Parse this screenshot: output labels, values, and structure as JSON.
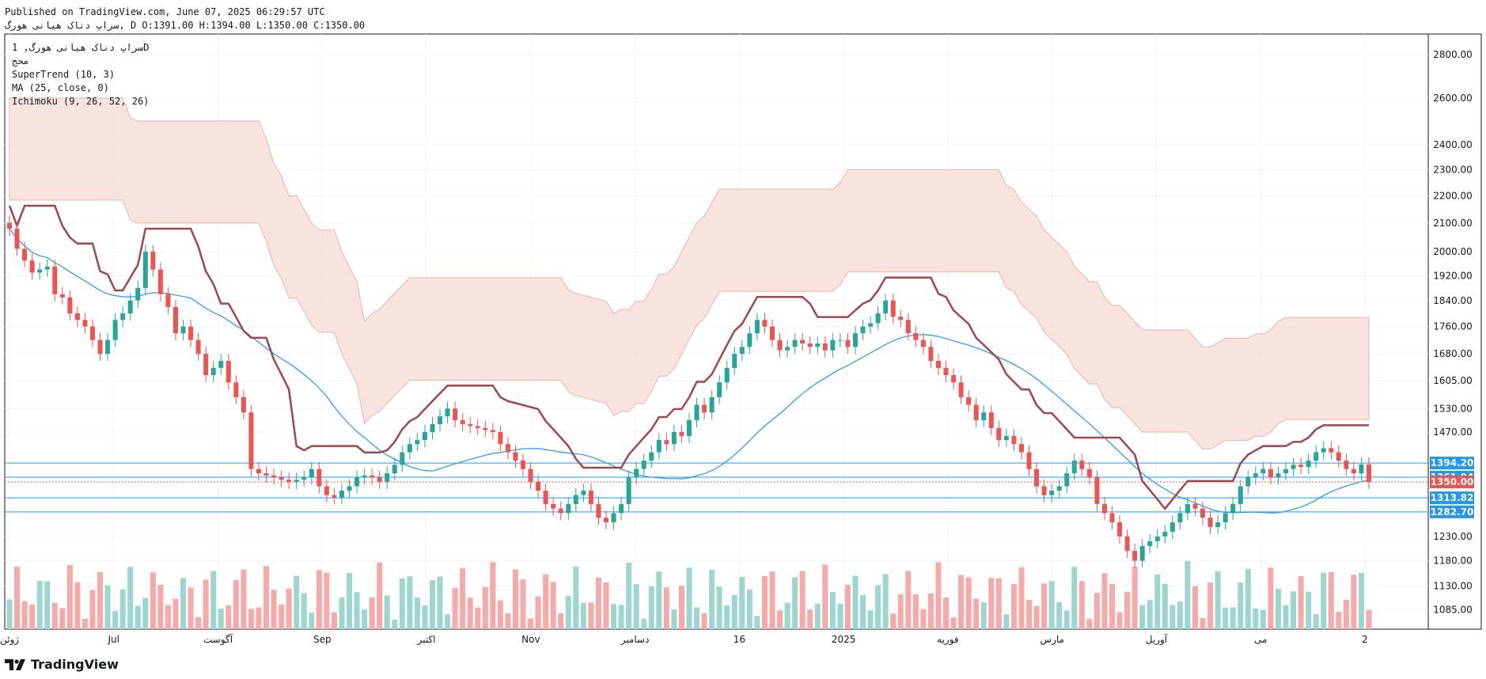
{
  "header": {
    "published": "Published on TradingView.com, June 07, 2025 06:29:57 UTC",
    "symbol_line": "سراپ دناک هیانی هورگ, D O:1391.00 H:1394.00 L:1350.00 C:1350.00"
  },
  "legend": {
    "title": "سراپ دناک هیانی هورگ, 1D",
    "subtitle": "محج",
    "indicators": [
      "SuperTrend (10, 3)",
      "MA (25, close, 0)",
      "Ichimoku (9, 26, 52, 26)"
    ]
  },
  "brand": {
    "name": "TradingView",
    "logo_icon": "tradingview-logo-icon"
  },
  "colors": {
    "up": "#26a69a",
    "down": "#ef5350",
    "supertrend_up": "#43a047",
    "supertrend_down": "#a04848",
    "ma": "#2196f3",
    "cloud_bear": "#f7d9d4",
    "cloud_bull": "#dcefdc",
    "hline": "#2196f3"
  },
  "chart_data": {
    "type": "candlestick",
    "y_scale": "log",
    "ylim": [
      1050,
      2900
    ],
    "x_ticks": [
      "ژوئن",
      "Jul",
      "آگوست",
      "Sep",
      "اکتبر",
      "Nov",
      "دسامبر",
      "16",
      "2025",
      "فوریه",
      "مارس",
      "آوریل",
      "می",
      "2"
    ],
    "y_ticks": [
      2800,
      2600,
      2400,
      2300,
      2200,
      2100,
      2000,
      1920,
      1840,
      1760,
      1680,
      1605,
      1530,
      1470,
      1230,
      1180,
      1130,
      1085
    ],
    "price_labels": [
      {
        "value": "1394.20",
        "price": 1394.2,
        "color": "#2196f3"
      },
      {
        "value": "1361.04",
        "price": 1361.04,
        "color": "#2196f3"
      },
      {
        "value": "1350.00",
        "price": 1350.0,
        "color": "#ef5350"
      },
      {
        "value": "1313.82",
        "price": 1313.82,
        "color": "#2196f3"
      },
      {
        "value": "1282.70",
        "price": 1282.7,
        "color": "#2196f3"
      }
    ],
    "horizontal_lines": [
      1394.2,
      1361.04,
      1313.82,
      1282.7
    ],
    "last_price": 1350,
    "closes": [
      2080,
      2010,
      1970,
      1930,
      1940,
      1950,
      1860,
      1850,
      1800,
      1780,
      1760,
      1720,
      1680,
      1720,
      1780,
      1800,
      1840,
      1880,
      2000,
      1940,
      1860,
      1820,
      1740,
      1760,
      1720,
      1680,
      1620,
      1640,
      1660,
      1600,
      1560,
      1520,
      1380,
      1370,
      1365,
      1360,
      1355,
      1350,
      1355,
      1360,
      1380,
      1340,
      1320,
      1315,
      1330,
      1340,
      1360,
      1365,
      1360,
      1350,
      1370,
      1390,
      1420,
      1440,
      1450,
      1470,
      1490,
      1510,
      1530,
      1500,
      1490,
      1485,
      1480,
      1475,
      1470,
      1440,
      1420,
      1400,
      1380,
      1350,
      1330,
      1300,
      1290,
      1280,
      1300,
      1320,
      1330,
      1300,
      1270,
      1260,
      1280,
      1300,
      1360,
      1380,
      1400,
      1420,
      1450,
      1440,
      1470,
      1460,
      1500,
      1540,
      1520,
      1560,
      1600,
      1640,
      1680,
      1700,
      1740,
      1780,
      1760,
      1720,
      1690,
      1700,
      1720,
      1710,
      1700,
      1710,
      1690,
      1720,
      1720,
      1700,
      1740,
      1760,
      1770,
      1800,
      1840,
      1790,
      1780,
      1740,
      1720,
      1700,
      1660,
      1640,
      1620,
      1600,
      1560,
      1540,
      1500,
      1520,
      1480,
      1450,
      1460,
      1440,
      1420,
      1380,
      1340,
      1320,
      1330,
      1340,
      1370,
      1400,
      1380,
      1360,
      1300,
      1280,
      1260,
      1230,
      1200,
      1180,
      1210,
      1220,
      1230,
      1240,
      1260,
      1280,
      1300,
      1290,
      1270,
      1250,
      1260,
      1280,
      1300,
      1340,
      1360,
      1370,
      1380,
      1360,
      1370,
      1380,
      1390,
      1385,
      1400,
      1420,
      1430,
      1420,
      1400,
      1380,
      1370,
      1391,
      1350
    ],
    "volume_range": [
      0,
      1
    ],
    "volumes_note": "Volume bars shown as histogram at bottom"
  }
}
